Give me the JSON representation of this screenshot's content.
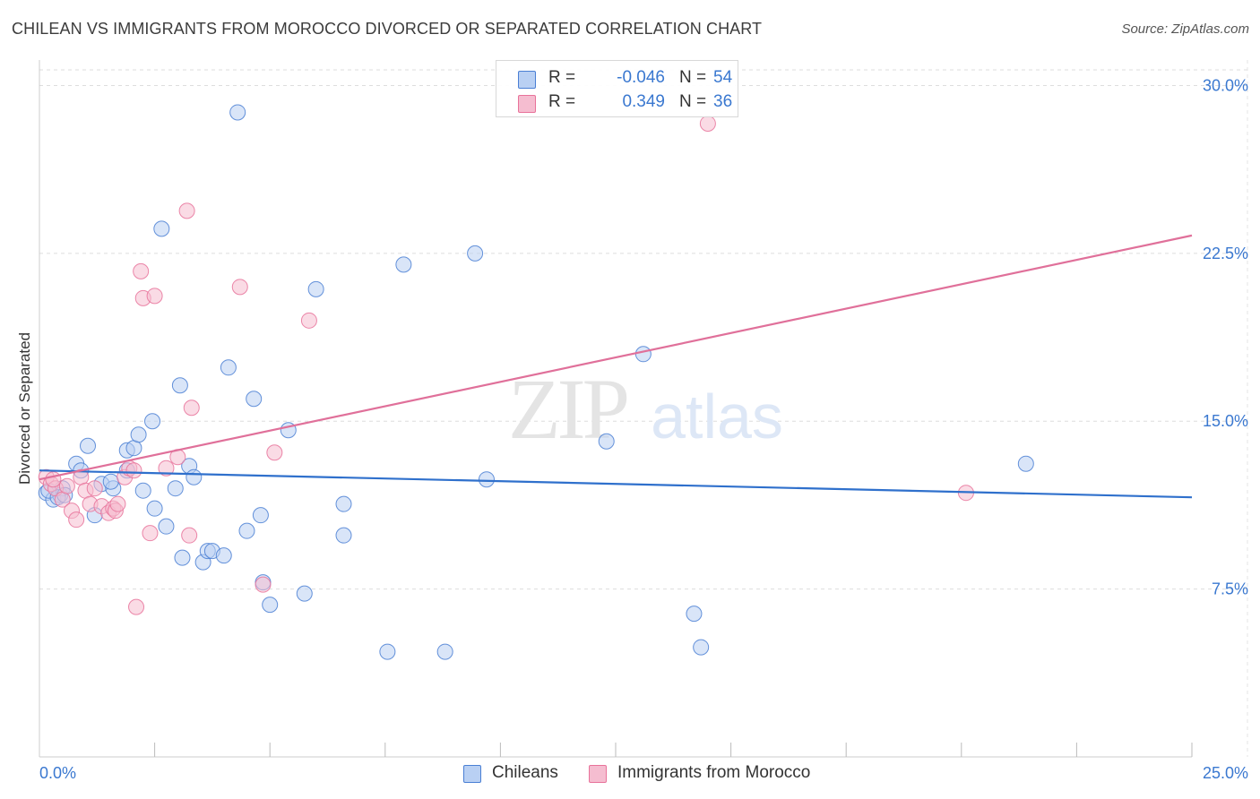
{
  "title": "CHILEAN VS IMMIGRANTS FROM MOROCCO DIVORCED OR SEPARATED CORRELATION CHART",
  "source": "Source: ZipAtlas.com",
  "watermark": {
    "zip": "ZIP",
    "atlas": "atlas"
  },
  "colors": {
    "blue": "#4a7fd4",
    "blue_fill": "#b9d0f3",
    "blue_line": "#2f70cc",
    "pink": "#e8729a",
    "pink_fill": "#f5bdd0",
    "pink_line": "#e0709a",
    "axis_text": "#3a78d0",
    "grid": "#dddddd"
  },
  "legend": {
    "rows": [
      {
        "r_label": "R =",
        "r_value": "-0.046",
        "n_label": "N =",
        "n_value": "54",
        "color": "#b9d0f3",
        "border": "#4a7fd4"
      },
      {
        "r_label": "R =",
        "r_value": "0.349",
        "n_label": "N =",
        "n_value": "36",
        "color": "#f5bdd0",
        "border": "#e8729a"
      }
    ]
  },
  "bottom_legend": [
    {
      "label": "Chileans",
      "color": "#b9d0f3",
      "border": "#4a7fd4"
    },
    {
      "label": "Immigrants from Morocco",
      "color": "#f5bdd0",
      "border": "#e8729a"
    }
  ],
  "chart_data": {
    "type": "scatter",
    "title": "CHILEAN VS IMMIGRANTS FROM MOROCCO DIVORCED OR SEPARATED CORRELATION CHART",
    "xlabel": "",
    "ylabel": "Divorced or Separated",
    "xlim": [
      0,
      25
    ],
    "ylim": [
      0,
      30.7
    ],
    "x_tick_labels": [
      {
        "value": 0,
        "label": "0.0%"
      },
      {
        "value": 25,
        "label": "25.0%"
      }
    ],
    "y_tick_labels": [
      {
        "value": 7.5,
        "label": "7.5%"
      },
      {
        "value": 15,
        "label": "15.0%"
      },
      {
        "value": 22.5,
        "label": "22.5%"
      },
      {
        "value": 30,
        "label": "30.0%"
      }
    ],
    "x_minor_ticks": [
      2.5,
      5,
      7.5,
      10,
      12.5,
      15,
      17.5,
      20,
      22.5,
      25
    ],
    "series": [
      {
        "name": "Chileans",
        "color": "#4a7fd4",
        "trend": {
          "x": [
            0,
            25
          ],
          "y": [
            12.8,
            11.6
          ]
        },
        "points": [
          [
            0.15,
            11.8
          ],
          [
            0.3,
            11.5
          ],
          [
            0.45,
            11.7
          ],
          [
            0.5,
            12.0
          ],
          [
            0.8,
            13.1
          ],
          [
            0.9,
            12.8
          ],
          [
            1.05,
            13.9
          ],
          [
            1.2,
            10.8
          ],
          [
            1.35,
            12.2
          ],
          [
            1.6,
            12.0
          ],
          [
            1.9,
            12.8
          ],
          [
            1.9,
            13.7
          ],
          [
            2.05,
            13.8
          ],
          [
            2.15,
            14.4
          ],
          [
            2.25,
            11.9
          ],
          [
            2.45,
            15.0
          ],
          [
            2.5,
            11.1
          ],
          [
            2.65,
            23.6
          ],
          [
            2.75,
            10.3
          ],
          [
            2.95,
            12.0
          ],
          [
            3.05,
            16.6
          ],
          [
            3.1,
            8.9
          ],
          [
            3.25,
            13.0
          ],
          [
            3.35,
            12.5
          ],
          [
            3.55,
            8.7
          ],
          [
            3.65,
            9.2
          ],
          [
            3.75,
            9.2
          ],
          [
            4.0,
            9.0
          ],
          [
            4.1,
            17.4
          ],
          [
            4.3,
            28.8
          ],
          [
            4.5,
            10.1
          ],
          [
            4.65,
            16.0
          ],
          [
            4.8,
            10.8
          ],
          [
            4.85,
            7.8
          ],
          [
            5.0,
            6.8
          ],
          [
            5.4,
            14.6
          ],
          [
            5.75,
            7.3
          ],
          [
            6.0,
            20.9
          ],
          [
            6.6,
            11.3
          ],
          [
            6.6,
            9.9
          ],
          [
            7.55,
            4.7
          ],
          [
            7.9,
            22.0
          ],
          [
            8.8,
            4.7
          ],
          [
            9.45,
            22.5
          ],
          [
            9.7,
            12.4
          ],
          [
            12.3,
            14.1
          ],
          [
            13.1,
            18.0
          ],
          [
            14.2,
            6.4
          ],
          [
            14.35,
            4.9
          ],
          [
            21.4,
            13.1
          ],
          [
            0.2,
            11.9
          ],
          [
            0.4,
            11.6
          ],
          [
            1.55,
            12.3
          ],
          [
            0.55,
            11.7
          ]
        ]
      },
      {
        "name": "Immigrants from Morocco",
        "color": "#e8729a",
        "trend": {
          "x": [
            0,
            25
          ],
          "y": [
            12.4,
            23.3
          ]
        },
        "points": [
          [
            0.15,
            12.5
          ],
          [
            0.25,
            12.2
          ],
          [
            0.35,
            12.0
          ],
          [
            0.5,
            11.5
          ],
          [
            0.6,
            12.1
          ],
          [
            0.7,
            11.0
          ],
          [
            0.8,
            10.6
          ],
          [
            0.9,
            12.5
          ],
          [
            1.0,
            11.9
          ],
          [
            1.1,
            11.3
          ],
          [
            1.2,
            12.0
          ],
          [
            1.35,
            11.2
          ],
          [
            1.5,
            10.9
          ],
          [
            1.6,
            11.1
          ],
          [
            1.65,
            11.0
          ],
          [
            1.7,
            11.3
          ],
          [
            1.85,
            12.5
          ],
          [
            1.95,
            12.9
          ],
          [
            2.05,
            12.8
          ],
          [
            2.1,
            6.7
          ],
          [
            2.2,
            21.7
          ],
          [
            2.25,
            20.5
          ],
          [
            2.4,
            10.0
          ],
          [
            2.5,
            20.6
          ],
          [
            2.75,
            12.9
          ],
          [
            3.0,
            13.4
          ],
          [
            3.2,
            24.4
          ],
          [
            3.25,
            9.9
          ],
          [
            3.3,
            15.6
          ],
          [
            4.35,
            21.0
          ],
          [
            4.85,
            7.7
          ],
          [
            5.1,
            13.6
          ],
          [
            5.85,
            19.5
          ],
          [
            14.5,
            28.3
          ],
          [
            20.1,
            11.8
          ],
          [
            0.3,
            12.4
          ]
        ]
      }
    ]
  }
}
